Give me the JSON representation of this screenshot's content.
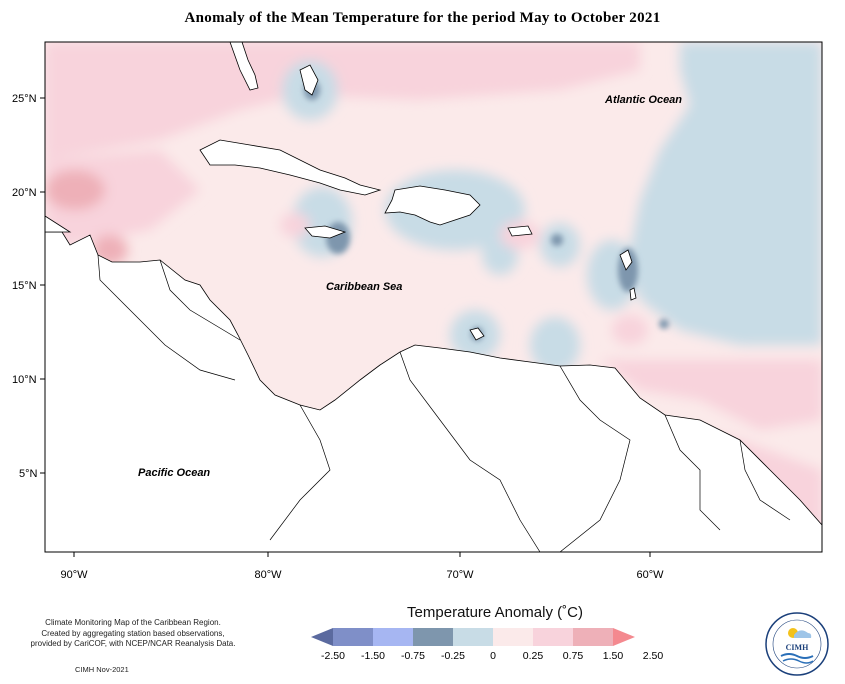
{
  "title": "Anomaly of the Mean Temperature for the period May to October 2021",
  "map_labels": {
    "atlantic": "Atlantic Ocean",
    "caribbean": "Caribbean Sea",
    "pacific": "Pacific Ocean"
  },
  "axis": {
    "lat_ticks": [
      "25°N",
      "20°N",
      "15°N",
      "10°N",
      "5°N"
    ],
    "lon_ticks": [
      "90°W",
      "80°W",
      "70°W",
      "60°W"
    ]
  },
  "legend": {
    "title": "Temperature Anomaly (˚C)",
    "labels": [
      "-2.50",
      "-1.50",
      "-0.75",
      "-0.25",
      "0",
      "0.25",
      "0.75",
      "1.50",
      "2.50"
    ],
    "colors": [
      "#5b6a9f",
      "#7f8fc8",
      "#a6b6f2",
      "#7e96ad",
      "#c8dce6",
      "#fbeaea",
      "#f8d3dc",
      "#eeb0b8",
      "#f4898f"
    ]
  },
  "credit": {
    "line1": "Climate Monitoring Map of the Caribbean Region.",
    "line2": "Created by aggregating station based observations,",
    "line3": "provided by CariCOF, with NCEP/NCAR Reanalysis Data."
  },
  "footer": "CIMH Nov-2021",
  "logo_text": "CIMH"
}
